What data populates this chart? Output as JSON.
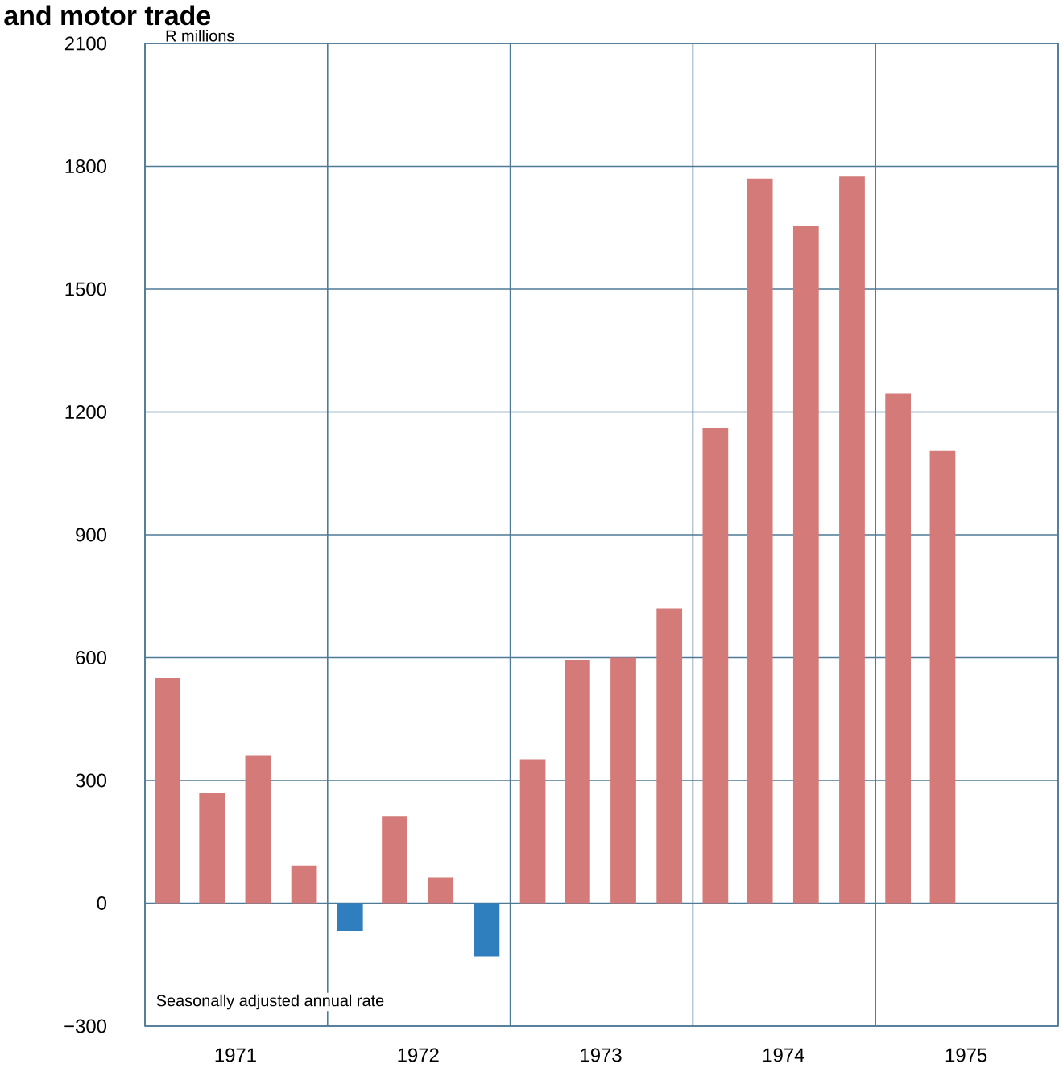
{
  "chart_data": {
    "type": "bar",
    "title": "and motor trade",
    "ylabel": "R millions",
    "annotations": [
      "Seasonally adjusted annual rate"
    ],
    "x": [
      "1971-02-15",
      "1971-05-15",
      "1971-08-15",
      "1971-11-15",
      "1972-02-15",
      "1972-05-15",
      "1972-08-15",
      "1972-11-15",
      "1973-02-15",
      "1973-05-15",
      "1973-08-15",
      "1973-11-15",
      "1974-02-15",
      "1974-05-15",
      "1974-08-15",
      "1974-11-15",
      "1975-02-15",
      "1975-05-15"
    ],
    "values": [
      550,
      270,
      360,
      92,
      -68,
      213,
      63,
      -130,
      350,
      595,
      600,
      720,
      1160,
      1770,
      1655,
      1775,
      1245,
      1105
    ],
    "colors": [
      "#d47a78",
      "#d47a78",
      "#d47a78",
      "#d47a78",
      "#2f7fbf",
      "#d47a78",
      "#d47a78",
      "#2f7fbf",
      "#d47a78",
      "#d47a78",
      "#d47a78",
      "#d47a78",
      "#d47a78",
      "#d47a78",
      "#d47a78",
      "#d47a78",
      "#d47a78",
      "#d47a78"
    ],
    "xlim": [
      "1971-01-01",
      "1976-01-01"
    ],
    "xticks": [
      {
        "value": "1971-01-01",
        "label": null
      },
      {
        "value": "1971-07-01",
        "label": "1971"
      },
      {
        "value": "1972-01-01",
        "label": null
      },
      {
        "value": "1972-07-01",
        "label": "1972"
      },
      {
        "value": "1973-01-01",
        "label": null
      },
      {
        "value": "1973-07-01",
        "label": "1973"
      },
      {
        "value": "1974-01-01",
        "label": null
      },
      {
        "value": "1974-07-01",
        "label": "1974"
      },
      {
        "value": "1975-01-01",
        "label": null
      },
      {
        "value": "1975-07-01",
        "label": "1975"
      },
      {
        "value": "1976-01-01",
        "label": null
      }
    ],
    "ylim": [
      -300,
      2100
    ],
    "yticks": [
      {
        "value": -300,
        "label": "−300"
      },
      0,
      300,
      600,
      900,
      1200,
      1500,
      1800,
      2100
    ],
    "grid": true
  }
}
